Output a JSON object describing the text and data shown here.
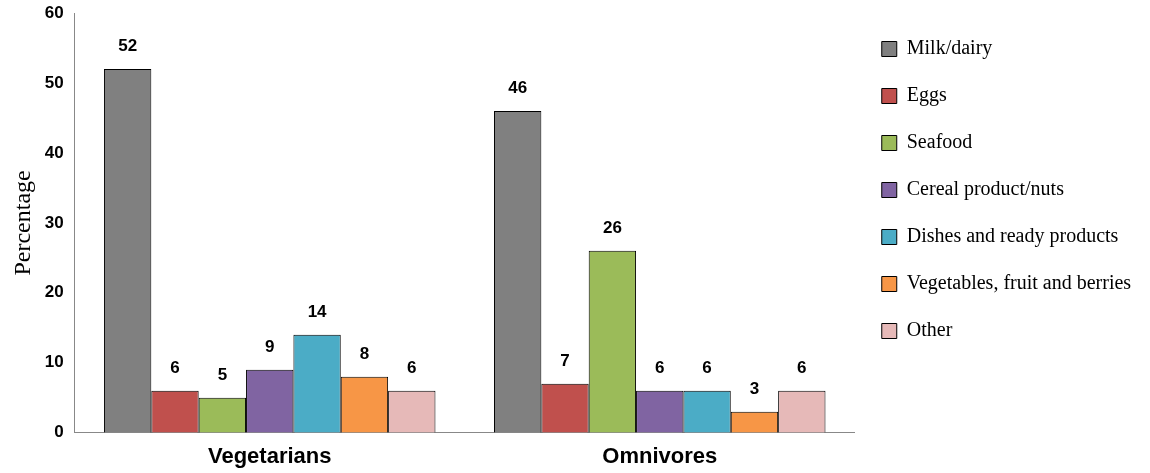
{
  "chart_data": {
    "type": "bar",
    "ylabel": "Percentage",
    "categories": [
      "Vegetarians",
      "Omnivores"
    ],
    "series": [
      {
        "name": "Milk/dairy",
        "color": "#808080",
        "values": [
          52,
          46
        ]
      },
      {
        "name": "Eggs",
        "color": "#c0504d",
        "values": [
          6,
          7
        ]
      },
      {
        "name": "Seafood",
        "color": "#9bbb59",
        "values": [
          5,
          26
        ]
      },
      {
        "name": "Cereal product/nuts",
        "color": "#8064a2",
        "values": [
          9,
          6
        ]
      },
      {
        "name": "Dishes and ready products",
        "color": "#4bacc6",
        "values": [
          14,
          6
        ]
      },
      {
        "name": "Vegetables, fruit and berries",
        "color": "#f79646",
        "values": [
          8,
          3
        ]
      },
      {
        "name": "Other",
        "color": "#e6b9b8",
        "values": [
          6,
          6
        ]
      }
    ],
    "ylim": [
      0,
      60
    ],
    "yticks": [
      0,
      10,
      20,
      30,
      40,
      50,
      60
    ],
    "grid": false,
    "legend": "right",
    "data_labels": true
  }
}
